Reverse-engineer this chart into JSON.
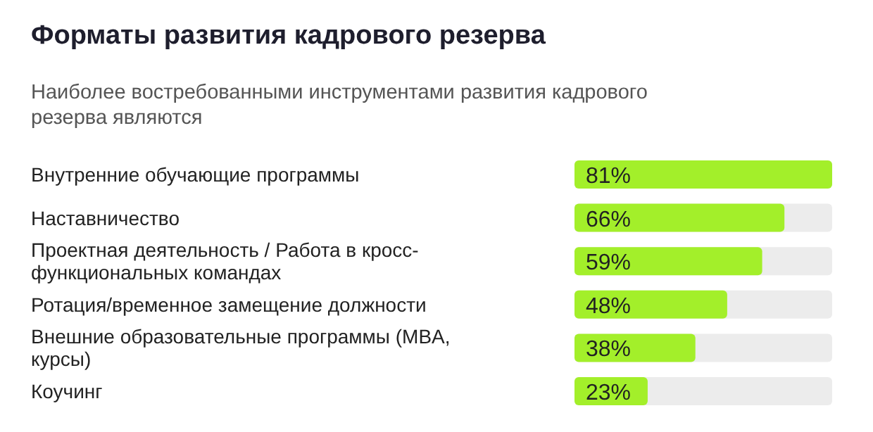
{
  "chart_data": {
    "type": "bar",
    "orientation": "horizontal",
    "title": "Форматы развития кадрового резерва",
    "subtitle": "Наиболее востребованными инструментами развития кадрового резерва являются",
    "categories": [
      "Внутренние обучающие программы",
      "Наставничество",
      "Проектная деятельность / Работа в кросс-функциональных командах",
      "Ротация/временное замещение должности",
      "Внешние образовательные программы (MBA, курсы)",
      "Коучинг"
    ],
    "values": [
      81,
      66,
      59,
      48,
      38,
      23
    ],
    "color": "#a3ef2a",
    "value_labels": [
      "81%",
      "66%",
      "59%",
      "48%",
      "38%",
      "23%"
    ]
  }
}
